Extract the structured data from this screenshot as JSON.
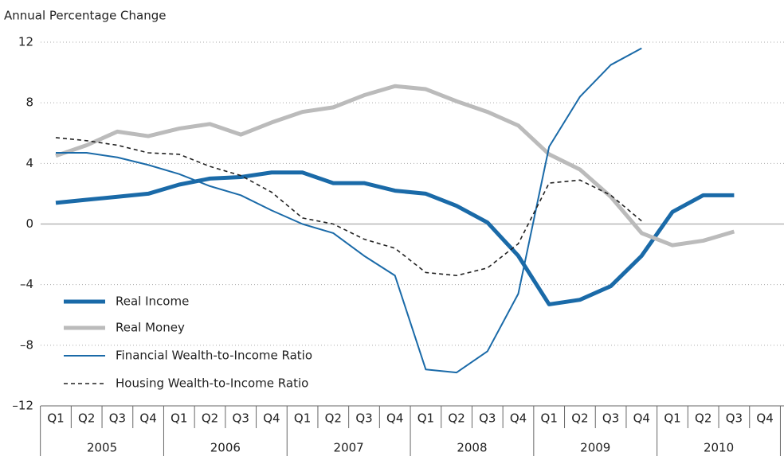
{
  "chart_data": {
    "type": "line",
    "y_axis_label": "Annual Percentage Change",
    "categories": [
      "Q1",
      "Q2",
      "Q3",
      "Q4",
      "Q1",
      "Q2",
      "Q3",
      "Q4",
      "Q1",
      "Q2",
      "Q3",
      "Q4",
      "Q1",
      "Q2",
      "Q3",
      "Q4",
      "Q1",
      "Q2",
      "Q3",
      "Q4",
      "Q1",
      "Q2",
      "Q3",
      "Q4"
    ],
    "years": [
      "2005",
      "2006",
      "2007",
      "2008",
      "2009",
      "2010"
    ],
    "ylim": [
      -12,
      12
    ],
    "yticks": [
      {
        "value": -12,
        "label": "–12"
      },
      {
        "value": -8,
        "label": "–8"
      },
      {
        "value": -4,
        "label": "–4"
      },
      0,
      4,
      8,
      12
    ],
    "grid": true,
    "legend": "lower-left",
    "series": [
      {
        "name": "Real Income",
        "color": "#1a6aa8",
        "line_width": 5,
        "dashed": false,
        "values": [
          1.4,
          1.6,
          1.8,
          2.0,
          2.6,
          3.0,
          3.1,
          3.4,
          3.4,
          2.7,
          2.7,
          2.2,
          2.0,
          1.2,
          0.1,
          -2.1,
          -5.3,
          -5.0,
          -4.1,
          -2.1,
          0.8,
          1.9,
          1.9,
          null
        ]
      },
      {
        "name": "Real Money",
        "color": "#bbbbbb",
        "line_width": 5,
        "dashed": false,
        "values": [
          4.5,
          5.2,
          6.1,
          5.8,
          6.3,
          6.6,
          5.9,
          6.7,
          7.4,
          7.7,
          8.5,
          9.1,
          8.9,
          8.1,
          7.4,
          6.5,
          4.6,
          3.6,
          1.8,
          -0.6,
          -1.4,
          -1.1,
          -0.5,
          null
        ]
      },
      {
        "name": "Financial Wealth-to-Income Ratio",
        "color": "#1a6aa8",
        "line_width": 2,
        "dashed": false,
        "values": [
          4.7,
          4.7,
          4.4,
          3.9,
          3.3,
          2.5,
          1.9,
          0.9,
          0.0,
          -0.6,
          -2.1,
          -3.4,
          -9.6,
          -9.8,
          -8.4,
          -4.6,
          5.1,
          8.4,
          10.5,
          11.6,
          null,
          null,
          null,
          null
        ]
      },
      {
        "name": "Housing Wealth-to-Income Ratio",
        "color": "#222222",
        "line_width": 1.6,
        "dashed": true,
        "values": [
          5.7,
          5.5,
          5.2,
          4.7,
          4.6,
          3.8,
          3.2,
          2.1,
          0.4,
          0.0,
          -1.0,
          -1.6,
          -3.2,
          -3.4,
          -2.9,
          -1.3,
          2.7,
          2.9,
          1.9,
          0.2,
          null,
          null,
          null,
          null
        ]
      }
    ]
  }
}
